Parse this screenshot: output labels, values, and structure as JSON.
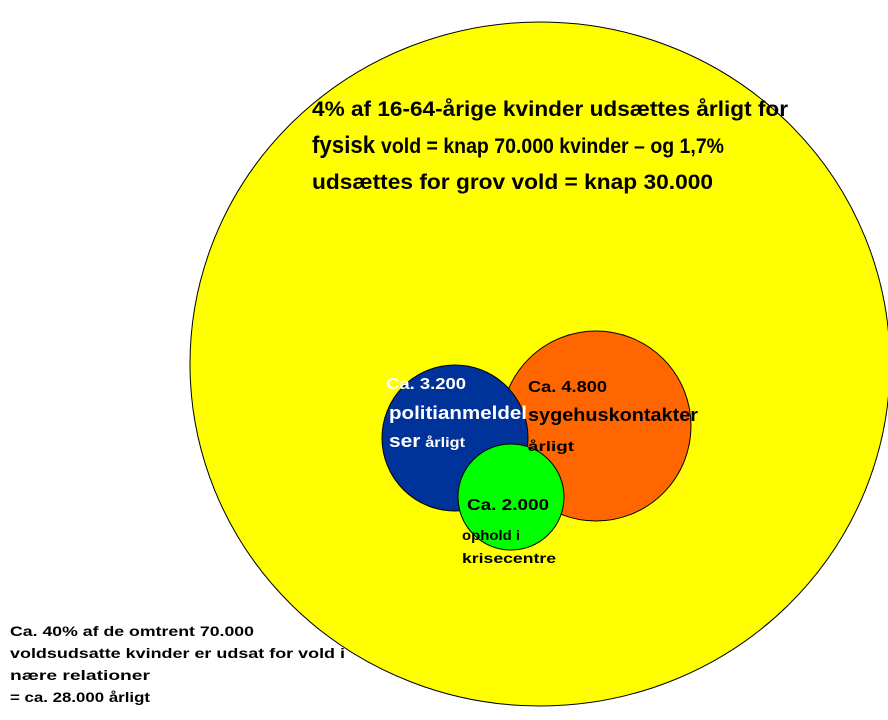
{
  "headline": {
    "lines": [
      [
        "4% af 16-64-årige kvinder udsættes årligt for"
      ],
      [
        "fysisk",
        "vold = knap 70.000 kvinder – og 1,7%"
      ],
      [
        "udsættes for grov vold = knap 30.000"
      ]
    ]
  },
  "circles": [
    {
      "name": "politi",
      "lines": [
        [
          "Ca. 3.200"
        ],
        [
          "politianmeldel"
        ],
        [
          "ser",
          "årligt"
        ]
      ]
    },
    {
      "name": "sygehus",
      "lines": [
        [
          "Ca. 4.800"
        ],
        [
          "sygehuskontakter"
        ],
        [
          "årligt"
        ]
      ]
    },
    {
      "name": "krisecenter",
      "lines": [
        [
          "Ca. 2.000"
        ],
        [
          "ophold i"
        ],
        [
          "krisecentre"
        ]
      ]
    }
  ],
  "footnote": {
    "lines": [
      "Ca. 40% af de omtrent 70.000",
      "voldsudsatte kvinder er udsat for vold i",
      "nære relationer",
      " = ca. 28.000 årligt"
    ]
  }
}
